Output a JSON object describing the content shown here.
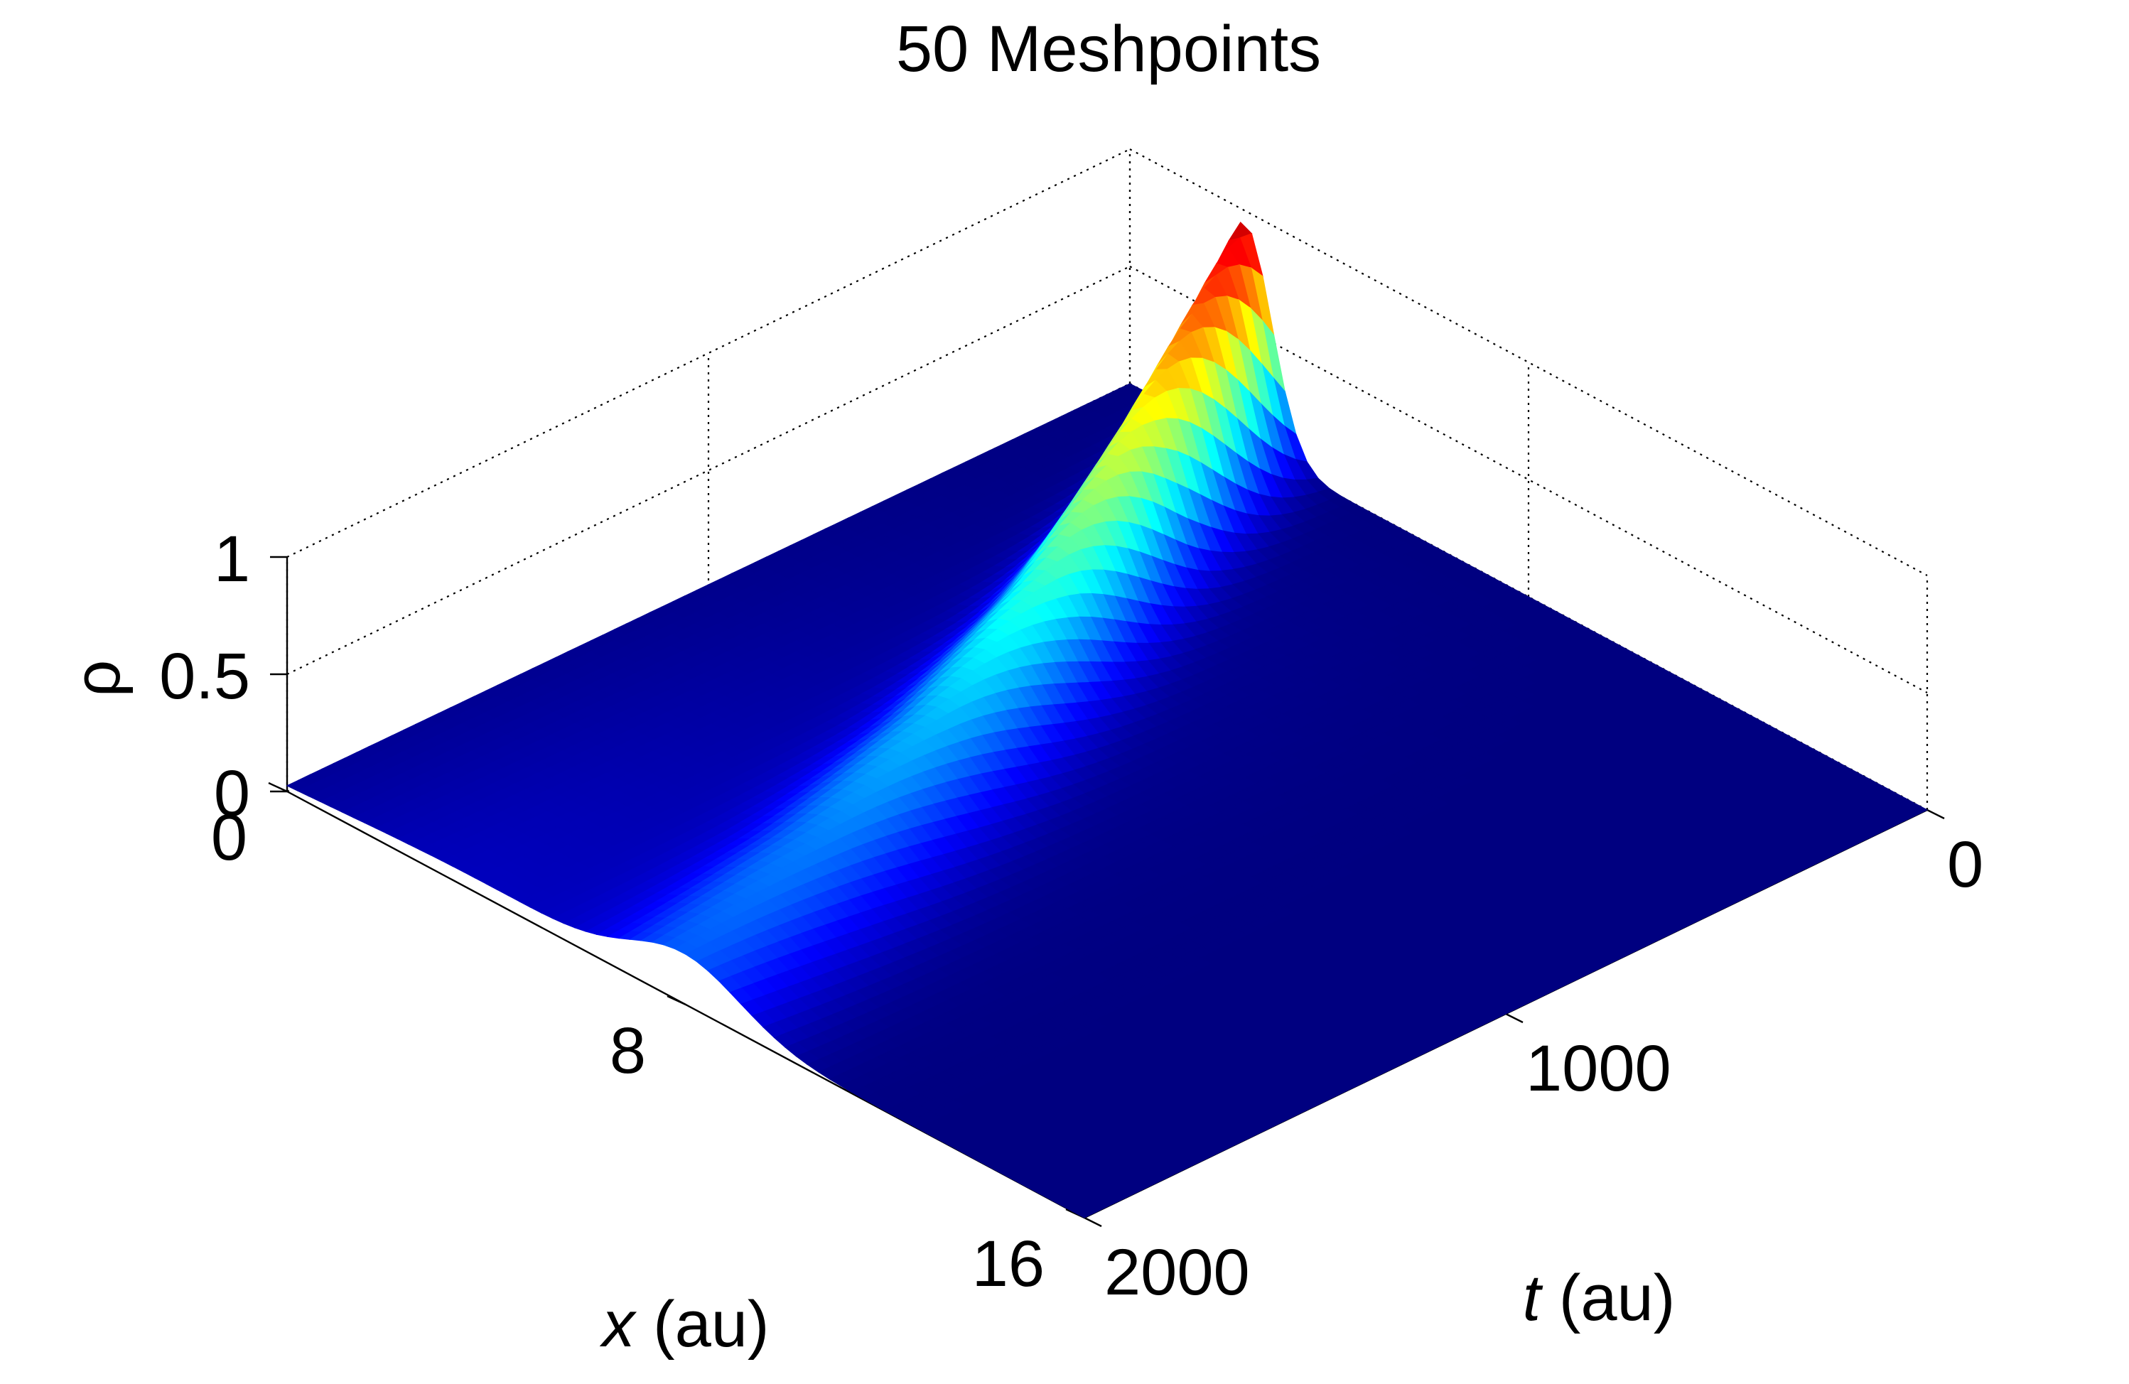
{
  "chart_data": {
    "type": "surface",
    "title": "50 Meshpoints",
    "xlabel_var": "x",
    "xlabel_unit": " (au)",
    "tlabel_var": "t",
    "tlabel_unit": " (au)",
    "zlabel": "ρ",
    "x_ticks": [
      {
        "value": 0,
        "label": "0"
      },
      {
        "value": 8,
        "label": "8"
      },
      {
        "value": 16,
        "label": "16"
      }
    ],
    "t_ticks": [
      {
        "value": 0,
        "label": "0"
      },
      {
        "value": 1000,
        "label": "1000"
      },
      {
        "value": 2000,
        "label": "2000"
      }
    ],
    "z_ticks": [
      {
        "value": 0,
        "label": "0"
      },
      {
        "value": 0.5,
        "label": "0.5"
      },
      {
        "value": 1,
        "label": "1"
      }
    ],
    "xlim": [
      0,
      16
    ],
    "tlim": [
      0,
      2000
    ],
    "zlim": [
      0,
      1
    ],
    "grid": true,
    "colormap": "jet",
    "ridge": [
      {
        "t": 0,
        "x": 2.3,
        "peak": 0.95
      },
      {
        "t": 400,
        "x": 3.6,
        "peak": 0.62
      },
      {
        "t": 800,
        "x": 5.0,
        "peak": 0.4
      },
      {
        "t": 1200,
        "x": 6.2,
        "peak": 0.28
      },
      {
        "t": 1600,
        "x": 7.2,
        "peak": 0.22
      },
      {
        "t": 2000,
        "x": 8.0,
        "peak": 0.19
      }
    ]
  }
}
